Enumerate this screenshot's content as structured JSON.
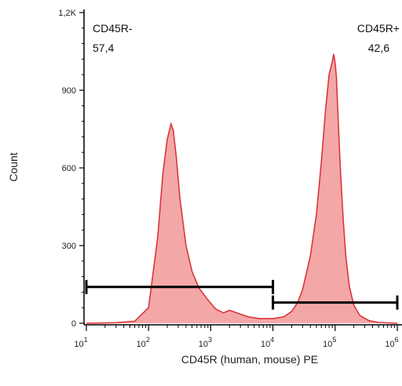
{
  "chart_data": {
    "type": "area",
    "title": "",
    "xlabel": "CD45R (human, mouse) PE",
    "ylabel": "Count",
    "x_scale": "log",
    "xlim": [
      10,
      1000000
    ],
    "ylim": [
      0,
      1200
    ],
    "y_ticks": [
      {
        "value": 0,
        "label": "0"
      },
      {
        "value": 300,
        "label": "300"
      },
      {
        "value": 600,
        "label": "600"
      },
      {
        "value": 900,
        "label": "900"
      },
      {
        "value": 1200,
        "label": "1,2K"
      }
    ],
    "x_ticks": [
      {
        "value": 10,
        "label_base": "10",
        "label_exp": "1"
      },
      {
        "value": 100,
        "label_base": "10",
        "label_exp": "2"
      },
      {
        "value": 1000,
        "label_base": "10",
        "label_exp": "3"
      },
      {
        "value": 10000,
        "label_base": "10",
        "label_exp": "4"
      },
      {
        "value": 100000,
        "label_base": "10",
        "label_exp": "5"
      },
      {
        "value": 1000000,
        "label_base": "10",
        "label_exp": "6"
      }
    ],
    "series": [
      {
        "color": "#f08a8a",
        "line_color": "#d9363b",
        "x": [
          10,
          30,
          60,
          100,
          140,
          170,
          200,
          230,
          250,
          280,
          320,
          400,
          500,
          650,
          900,
          1200,
          1600,
          2000,
          3000,
          4000,
          6000,
          10000,
          15000,
          20000,
          25000,
          30000,
          40000,
          50000,
          60000,
          70000,
          80000,
          90000,
          95000,
          100000,
          105000,
          110000,
          120000,
          135000,
          150000,
          170000,
          200000,
          250000,
          350000,
          500000,
          1000000
        ],
        "y": [
          0,
          2,
          8,
          60,
          330,
          580,
          710,
          770,
          745,
          640,
          480,
          300,
          200,
          135,
          90,
          55,
          40,
          50,
          35,
          25,
          18,
          18,
          25,
          45,
          80,
          130,
          260,
          420,
          620,
          820,
          960,
          1010,
          1040,
          1005,
          950,
          830,
          620,
          400,
          250,
          140,
          70,
          30,
          10,
          3,
          0
        ]
      }
    ],
    "gates": [
      {
        "name": "CD45R-",
        "value": "57,4",
        "x_range": [
          10,
          10000
        ],
        "y_level": 140,
        "label_position": "top-left"
      },
      {
        "name": "CD45R+",
        "value": "42,6",
        "x_range": [
          10000,
          1000000
        ],
        "y_level": 80,
        "label_position": "top-right"
      }
    ]
  }
}
